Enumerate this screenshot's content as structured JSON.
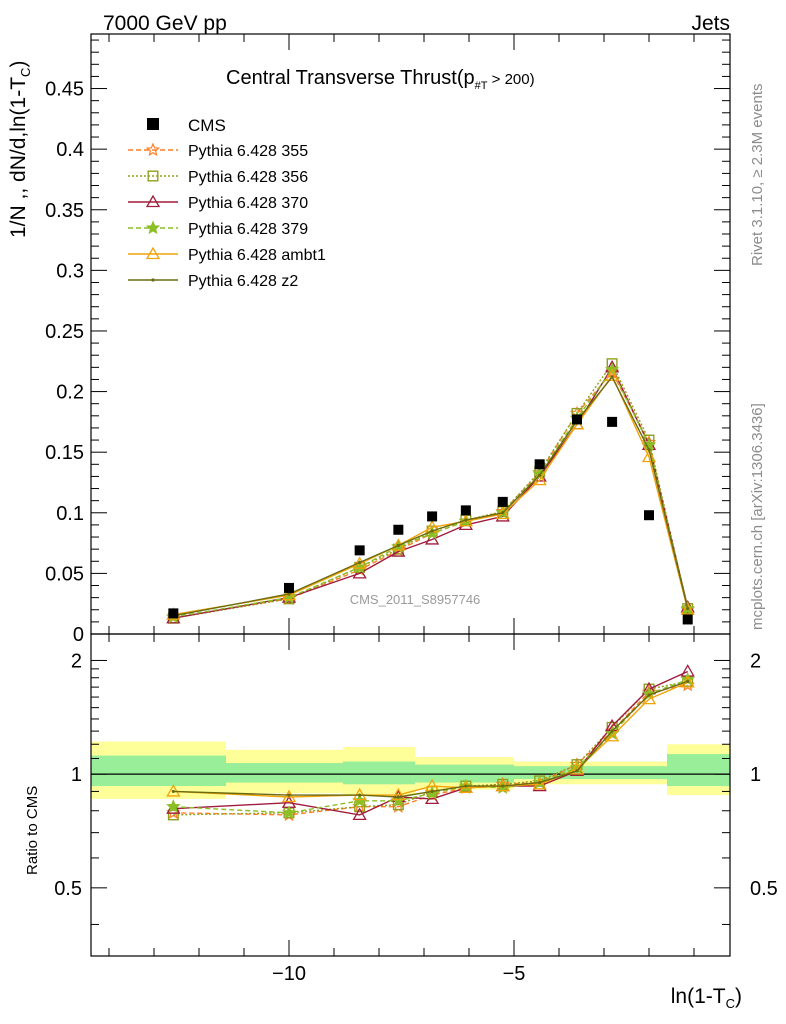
{
  "header": {
    "beam": "7000 GeV pp",
    "process": "Jets"
  },
  "side_labels": {
    "rivet": "Rivet 3.1.10, ≥ 2.3M events",
    "mcplots": "mcplots.cern.ch [arXiv:1306.3436]"
  },
  "watermark": "CMS_2011_S8957746",
  "chart_data": [
    {
      "type": "scatter",
      "title": "Central Transverse Thrust(p",
      "title_sub": "#T",
      "title_tail": " > 200)",
      "ylabel": "1/N ,, dN/d,ln(1-T",
      "ylabel_sub": "C",
      "ylabel_tail": ")",
      "xlabel": "ln(1-T",
      "xlabel_sub": "C",
      "xlabel_tail": ")",
      "xlim": [
        -14.4,
        -0.2
      ],
      "ylim": [
        0,
        0.495
      ],
      "yticks": [
        "0",
        "0.05",
        "0.1",
        "0.15",
        "0.2",
        "0.25",
        "0.3",
        "0.35",
        "0.4",
        "0.45"
      ],
      "yticks_values": [
        0,
        0.05,
        0.1,
        0.15,
        0.2,
        0.25,
        0.3,
        0.35,
        0.4,
        0.45
      ],
      "x": [
        -12.57,
        -10.0,
        -8.43,
        -7.57,
        -6.82,
        -6.07,
        -5.25,
        -4.43,
        -3.6,
        -2.82,
        -2.0,
        -1.14
      ],
      "data": {
        "name": "CMS",
        "color": "#000000",
        "values": [
          0.017,
          0.038,
          0.069,
          0.086,
          0.097,
          0.102,
          0.109,
          0.14,
          0.177,
          0.175,
          0.098,
          0.012
        ]
      },
      "series": [
        {
          "name": "Pythia 6.428 355",
          "color": "#ff7f27",
          "dash": "5,3",
          "marker": "star",
          "values": [
            0.014,
            0.029,
            0.053,
            0.069,
            0.083,
            0.093,
            0.101,
            0.133,
            0.182,
            0.216,
            0.158,
            0.02
          ]
        },
        {
          "name": "Pythia 6.428 356",
          "color": "#8fa01c",
          "dash": "2,2",
          "marker": "square-open",
          "values": [
            0.013,
            0.029,
            0.055,
            0.07,
            0.085,
            0.094,
            0.101,
            0.134,
            0.182,
            0.223,
            0.16,
            0.021
          ]
        },
        {
          "name": "Pythia 6.428 370",
          "color": "#a01c3c",
          "dash": "",
          "marker": "triangle-open",
          "values": [
            0.013,
            0.03,
            0.05,
            0.068,
            0.078,
            0.09,
            0.097,
            0.13,
            0.173,
            0.22,
            0.156,
            0.022
          ]
        },
        {
          "name": "Pythia 6.428 379",
          "color": "#8cbf26",
          "dash": "5,3",
          "marker": "star",
          "values": [
            0.014,
            0.03,
            0.055,
            0.072,
            0.083,
            0.093,
            0.1,
            0.132,
            0.178,
            0.218,
            0.156,
            0.021
          ]
        },
        {
          "name": "Pythia 6.428 ambt1",
          "color": "#f0a30a",
          "dash": "",
          "marker": "triangle-open",
          "values": [
            0.016,
            0.032,
            0.058,
            0.073,
            0.088,
            0.093,
            0.099,
            0.127,
            0.173,
            0.213,
            0.146,
            0.02
          ]
        },
        {
          "name": "Pythia 6.428 z2",
          "color": "#6b6b10",
          "dash": "",
          "marker": "dot",
          "values": [
            0.015,
            0.033,
            0.059,
            0.073,
            0.085,
            0.094,
            0.1,
            0.131,
            0.176,
            0.212,
            0.152,
            0.021
          ]
        }
      ]
    },
    {
      "type": "scatter",
      "title": "",
      "ylabel": "Ratio to CMS",
      "xlim": [
        -14.4,
        -0.2
      ],
      "ylim": [
        0.33,
        2.35
      ],
      "log_y": true,
      "xticks": [
        "−10",
        "−5"
      ],
      "xticks_values": [
        -10,
        -5
      ],
      "yticks": [
        "0.5",
        "1",
        "2"
      ],
      "yticks_values": [
        0.5,
        1,
        2
      ],
      "reference_line": 1,
      "uncertainty_bands": [
        {
          "x_from": -14.4,
          "x_to": -11.4,
          "yellow": [
            0.86,
            1.22
          ],
          "green": [
            0.93,
            1.12
          ]
        },
        {
          "x_from": -11.4,
          "x_to": -8.8,
          "yellow": [
            0.89,
            1.16
          ],
          "green": [
            0.95,
            1.07
          ]
        },
        {
          "x_from": -8.8,
          "x_to": -7.2,
          "yellow": [
            0.88,
            1.18
          ],
          "green": [
            0.94,
            1.08
          ]
        },
        {
          "x_from": -7.2,
          "x_to": -5.0,
          "yellow": [
            0.91,
            1.11
          ],
          "green": [
            0.95,
            1.06
          ]
        },
        {
          "x_from": -5.0,
          "x_to": -1.6,
          "yellow": [
            0.94,
            1.08
          ],
          "green": [
            0.97,
            1.05
          ]
        },
        {
          "x_from": -1.6,
          "x_to": -0.2,
          "yellow": [
            0.88,
            1.2
          ],
          "green": [
            0.93,
            1.13
          ]
        }
      ],
      "series": [
        {
          "name": "Pythia 6.428 355",
          "values": [
            0.79,
            0.78,
            0.82,
            0.82,
            0.88,
            0.92,
            0.94,
            0.95,
            1.06,
            1.3,
            1.65,
            1.72
          ]
        },
        {
          "name": "Pythia 6.428 356",
          "values": [
            0.78,
            0.79,
            0.82,
            0.83,
            0.9,
            0.93,
            0.94,
            0.96,
            1.06,
            1.33,
            1.68,
            1.76
          ]
        },
        {
          "name": "Pythia 6.428 370",
          "values": [
            0.81,
            0.84,
            0.78,
            0.87,
            0.86,
            0.92,
            0.93,
            0.93,
            1.02,
            1.34,
            1.68,
            1.87
          ]
        },
        {
          "name": "Pythia 6.428 379",
          "values": [
            0.82,
            0.79,
            0.85,
            0.85,
            0.89,
            0.93,
            0.92,
            0.95,
            1.04,
            1.28,
            1.63,
            1.78
          ]
        },
        {
          "name": "Pythia 6.428 ambt1",
          "values": [
            0.9,
            0.87,
            0.88,
            0.88,
            0.93,
            0.92,
            0.93,
            0.94,
            1.03,
            1.26,
            1.58,
            1.75
          ]
        },
        {
          "name": "Pythia 6.428 z2",
          "values": [
            0.9,
            0.88,
            0.88,
            0.87,
            0.9,
            0.93,
            0.93,
            0.95,
            1.02,
            1.3,
            1.62,
            1.76
          ]
        }
      ]
    }
  ]
}
